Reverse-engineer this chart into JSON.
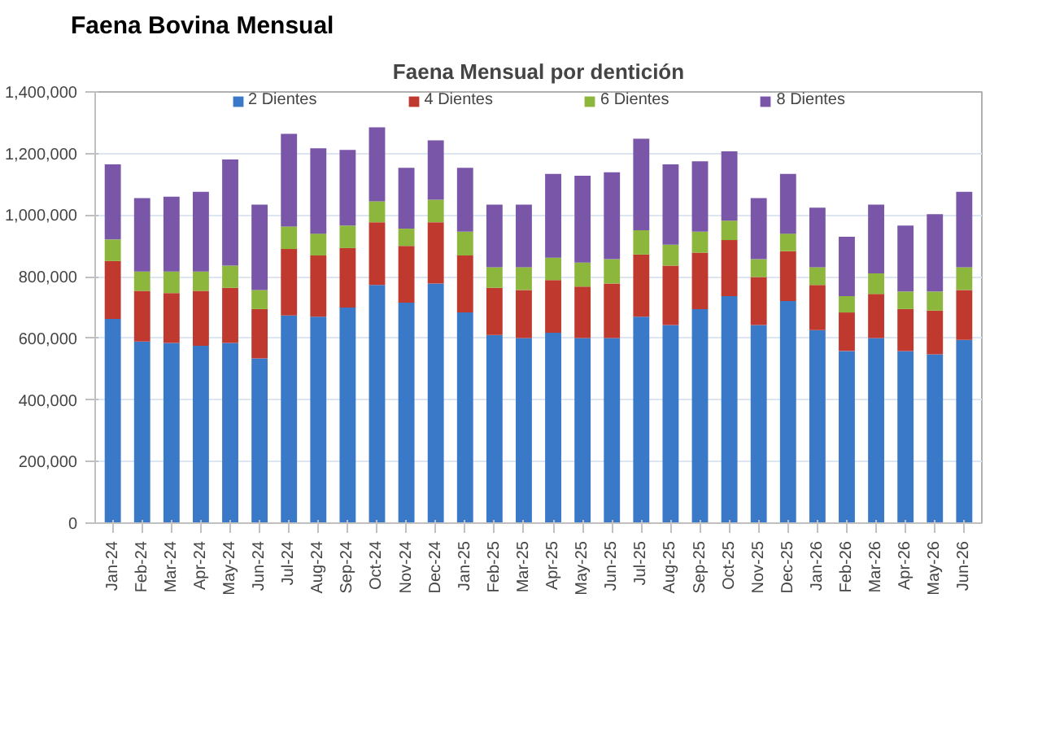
{
  "chart_data": {
    "type": "bar",
    "stacked": true,
    "title": "Faena Bovina Mensual",
    "subtitle": "Faena Mensual por dentición",
    "categories": [
      "Jan-24",
      "Feb-24",
      "Mar-24",
      "Apr-24",
      "May-24",
      "Jun-24",
      "Jul-24",
      "Aug-24",
      "Sep-24",
      "Oct-24",
      "Nov-24",
      "Dec-24",
      "Jan-25",
      "Feb-25",
      "Mar-25",
      "Apr-25",
      "May-25",
      "Jun-25",
      "Jul-25",
      "Aug-25",
      "Sep-25",
      "Oct-25",
      "Nov-25",
      "Dec-25",
      "Jan-26",
      "Feb-26",
      "Mar-26",
      "Apr-26",
      "May-26",
      "Jun-26"
    ],
    "series": [
      {
        "name": "2 Dientes",
        "color": "#3a78c8",
        "values": [
          663000,
          590000,
          585000,
          576000,
          585000,
          535000,
          674000,
          670000,
          700000,
          773000,
          716000,
          778000,
          684000,
          611000,
          601000,
          618000,
          601000,
          601000,
          670000,
          643000,
          695000,
          737000,
          643000,
          721000,
          627000,
          559000,
          601000,
          559000,
          548000,
          595000
        ]
      },
      {
        "name": "4 Dientes",
        "color": "#c0392f",
        "values": [
          188000,
          164000,
          162000,
          178000,
          179000,
          160000,
          216000,
          199000,
          193000,
          204000,
          184000,
          199000,
          185000,
          153000,
          156000,
          171000,
          167000,
          177000,
          202000,
          193000,
          183000,
          182000,
          156000,
          162000,
          146000,
          125000,
          143000,
          136000,
          142000,
          162000
        ]
      },
      {
        "name": "6 Dientes",
        "color": "#8db63c",
        "values": [
          70000,
          63000,
          70000,
          63000,
          72000,
          62000,
          73000,
          71000,
          73000,
          68000,
          56000,
          73000,
          77000,
          67000,
          74000,
          73000,
          78000,
          79000,
          79000,
          68000,
          68000,
          63000,
          58000,
          57000,
          58000,
          53000,
          67000,
          57000,
          62000,
          74000
        ]
      },
      {
        "name": "8 Dientes",
        "color": "#7a56a8",
        "values": [
          244000,
          238000,
          243000,
          259000,
          345000,
          277000,
          301000,
          277000,
          246000,
          240000,
          198000,
          193000,
          208000,
          203000,
          203000,
          272000,
          282000,
          282000,
          297000,
          261000,
          229000,
          225000,
          198000,
          194000,
          193000,
          193000,
          223000,
          214000,
          251000,
          245000
        ]
      }
    ],
    "ylim": [
      0,
      1400000
    ],
    "yticks": [
      {
        "value": 0,
        "label": "0"
      },
      {
        "value": 200000,
        "label": "200,000"
      },
      {
        "value": 400000,
        "label": "400,000"
      },
      {
        "value": 600000,
        "label": "600,000"
      },
      {
        "value": 800000,
        "label": "800,000"
      },
      {
        "value": 1000000,
        "label": "1,000,000"
      },
      {
        "value": 1200000,
        "label": "1,200,000"
      },
      {
        "value": 1400000,
        "label": "1,400,000"
      }
    ],
    "grid": "y",
    "legend": "top"
  }
}
